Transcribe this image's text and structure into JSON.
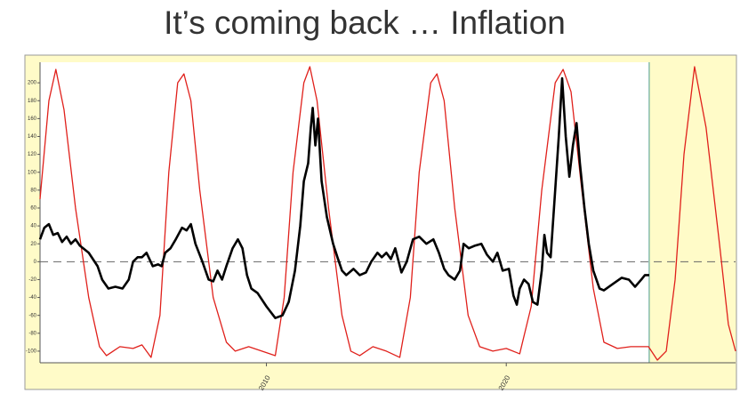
{
  "chart_data": {
    "type": "line",
    "title": "It’s coming back … Inflation",
    "xlim": [
      2000.56,
      2029.56
    ],
    "xticks": [
      2010,
      2020
    ],
    "ylim": [
      -113,
      223
    ],
    "yticks": [
      -100,
      -80,
      -60,
      -40,
      -20,
      0,
      20,
      40,
      60,
      80,
      100,
      120,
      140,
      160,
      180,
      200
    ],
    "reference_line": 0,
    "shaded_region": [
      2025.96,
      2029.56
    ],
    "shade_color": "#fffbc8",
    "series": [
      {
        "color": "#e0201b",
        "x": [
          2000.56,
          2000.93,
          2001.22,
          2001.56,
          2002.04,
          2002.59,
          2003.04,
          2003.33,
          2003.89,
          2004.44,
          2004.81,
          2005.19,
          2005.56,
          2005.93,
          2006.3,
          2006.56,
          2006.85,
          2007.22,
          2007.78,
          2008.33,
          2008.7,
          2009.26,
          2009.81,
          2010.37,
          2010.74,
          2011.11,
          2011.56,
          2011.81,
          2012.11,
          2012.59,
          2013.15,
          2013.52,
          2013.89,
          2014.44,
          2015.0,
          2015.56,
          2016.0,
          2016.37,
          2016.85,
          2017.11,
          2017.41,
          2017.85,
          2018.41,
          2018.89,
          2019.44,
          2020.0,
          2020.56,
          2021.04,
          2021.48,
          2022.04,
          2022.37,
          2022.7,
          2023.15,
          2023.63,
          2024.07,
          2024.63,
          2025.19,
          2025.93,
          2026.3,
          2026.67,
          2027.04,
          2027.41,
          2027.85,
          2028.33,
          2028.89,
          2029.26,
          2029.56
        ],
        "values": [
          70,
          180,
          215,
          170,
          60,
          -40,
          -95,
          -105,
          -95,
          -97,
          -93,
          -107,
          -60,
          100,
          200,
          210,
          180,
          80,
          -40,
          -90,
          -100,
          -95,
          -100,
          -105,
          -40,
          100,
          200,
          218,
          180,
          60,
          -60,
          -100,
          -105,
          -95,
          -100,
          -107,
          -40,
          100,
          200,
          210,
          180,
          60,
          -60,
          -95,
          -100,
          -97,
          -103,
          -50,
          80,
          200,
          215,
          190,
          80,
          -30,
          -90,
          -97,
          -95,
          -95,
          -110,
          -100,
          -20,
          120,
          218,
          150,
          20,
          -70,
          -100
        ]
      },
      {
        "color": "#000000",
        "x": [
          2000.56,
          2000.74,
          2000.93,
          2001.11,
          2001.3,
          2001.48,
          2001.67,
          2001.85,
          2002.04,
          2002.22,
          2002.59,
          2002.96,
          2003.15,
          2003.41,
          2003.7,
          2004.0,
          2004.26,
          2004.44,
          2004.63,
          2004.81,
          2005.0,
          2005.26,
          2005.48,
          2005.63,
          2005.78,
          2006.0,
          2006.22,
          2006.48,
          2006.67,
          2006.85,
          2007.04,
          2007.33,
          2007.59,
          2007.78,
          2007.96,
          2008.15,
          2008.33,
          2008.59,
          2008.81,
          2009.0,
          2009.19,
          2009.37,
          2009.63,
          2010.0,
          2010.37,
          2010.67,
          2010.93,
          2011.19,
          2011.41,
          2011.56,
          2011.74,
          2011.85,
          2011.93,
          2012.04,
          2012.15,
          2012.3,
          2012.52,
          2012.78,
          2012.96,
          2013.15,
          2013.33,
          2013.63,
          2013.89,
          2014.15,
          2014.37,
          2014.63,
          2014.81,
          2015.0,
          2015.19,
          2015.37,
          2015.63,
          2015.85,
          2016.11,
          2016.37,
          2016.67,
          2016.96,
          2017.19,
          2017.41,
          2017.59,
          2017.85,
          2018.07,
          2018.22,
          2018.44,
          2018.7,
          2018.96,
          2019.19,
          2019.44,
          2019.63,
          2019.85,
          2020.11,
          2020.3,
          2020.44,
          2020.56,
          2020.74,
          2020.93,
          2021.11,
          2021.3,
          2021.48,
          2021.59,
          2021.7,
          2021.85,
          2022.04,
          2022.19,
          2022.33,
          2022.48,
          2022.63,
          2022.78,
          2022.93,
          2023.07,
          2023.26,
          2023.44,
          2023.63,
          2023.89,
          2024.07,
          2024.44,
          2024.81,
          2025.11,
          2025.37,
          2025.63,
          2025.78,
          2025.96
        ],
        "values": [
          25,
          38,
          42,
          30,
          32,
          22,
          28,
          20,
          25,
          18,
          10,
          -5,
          -20,
          -30,
          -28,
          -30,
          -20,
          0,
          5,
          5,
          10,
          -5,
          -3,
          -5,
          10,
          15,
          25,
          38,
          35,
          42,
          20,
          0,
          -20,
          -22,
          -10,
          -20,
          -5,
          15,
          25,
          15,
          -15,
          -30,
          -35,
          -50,
          -63,
          -60,
          -45,
          -10,
          40,
          90,
          110,
          150,
          172,
          130,
          160,
          90,
          50,
          20,
          5,
          -10,
          -15,
          -8,
          -15,
          -12,
          0,
          10,
          5,
          10,
          3,
          15,
          -12,
          0,
          25,
          28,
          20,
          25,
          10,
          -8,
          -15,
          -20,
          -10,
          20,
          15,
          18,
          20,
          8,
          0,
          10,
          -10,
          -8,
          -38,
          -48,
          -30,
          -20,
          -25,
          -45,
          -48,
          -10,
          30,
          10,
          5,
          80,
          140,
          205,
          140,
          95,
          130,
          155,
          110,
          60,
          20,
          -10,
          -30,
          -32,
          -25,
          -18,
          -20,
          -28,
          -20,
          -15,
          -15
        ]
      }
    ]
  }
}
